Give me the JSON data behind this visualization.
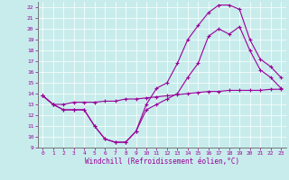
{
  "xlabel": "Windchill (Refroidissement éolien,°C)",
  "bg_color": "#c8ecec",
  "line_color": "#990099",
  "grid_color": "#ffffff",
  "xlim": [
    -0.5,
    23.5
  ],
  "ylim": [
    9,
    22.5
  ],
  "yticks": [
    9,
    10,
    11,
    12,
    13,
    14,
    15,
    16,
    17,
    18,
    19,
    20,
    21,
    22
  ],
  "xticks": [
    0,
    1,
    2,
    3,
    4,
    5,
    6,
    7,
    8,
    9,
    10,
    11,
    12,
    13,
    14,
    15,
    16,
    17,
    18,
    19,
    20,
    21,
    22,
    23
  ],
  "line1_x": [
    0,
    1,
    2,
    3,
    4,
    5,
    6,
    7,
    8,
    9,
    10,
    11,
    12,
    13,
    14,
    15,
    16,
    17,
    18,
    19,
    20,
    21,
    22,
    23
  ],
  "line1_y": [
    13.8,
    13.0,
    12.5,
    12.5,
    12.5,
    11.0,
    9.8,
    9.5,
    9.5,
    10.5,
    12.5,
    13.0,
    13.5,
    14.0,
    15.5,
    16.8,
    19.3,
    20.0,
    19.5,
    20.2,
    18.0,
    16.2,
    15.5,
    14.5
  ],
  "line2_x": [
    0,
    1,
    2,
    3,
    4,
    5,
    6,
    7,
    8,
    9,
    10,
    11,
    12,
    13,
    14,
    15,
    16,
    17,
    18,
    19,
    20,
    21,
    22,
    23
  ],
  "line2_y": [
    13.8,
    13.0,
    12.5,
    12.5,
    12.5,
    11.0,
    9.8,
    9.5,
    9.5,
    10.5,
    13.0,
    14.5,
    15.0,
    16.8,
    19.0,
    20.3,
    21.5,
    22.2,
    22.2,
    21.8,
    19.0,
    17.2,
    16.5,
    15.5
  ],
  "line3_x": [
    0,
    1,
    2,
    3,
    4,
    5,
    6,
    7,
    8,
    9,
    10,
    11,
    12,
    13,
    14,
    15,
    16,
    17,
    18,
    19,
    20,
    21,
    22,
    23
  ],
  "line3_y": [
    13.8,
    13.0,
    13.0,
    13.2,
    13.2,
    13.2,
    13.3,
    13.3,
    13.5,
    13.5,
    13.6,
    13.7,
    13.8,
    13.9,
    14.0,
    14.1,
    14.2,
    14.2,
    14.3,
    14.3,
    14.3,
    14.3,
    14.4,
    14.4
  ]
}
